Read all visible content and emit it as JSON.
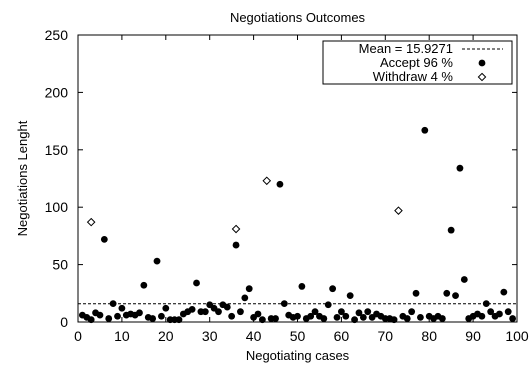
{
  "chart_data": {
    "type": "scatter",
    "title": "Negotiations Outcomes",
    "xlabel": "Negotiating cases",
    "ylabel": "Negotiations Lenght",
    "xlim": [
      0,
      100
    ],
    "ylim": [
      0,
      250
    ],
    "xticks": [
      0,
      10,
      20,
      30,
      40,
      50,
      60,
      70,
      80,
      90,
      100
    ],
    "yticks": [
      0,
      50,
      100,
      150,
      200,
      250
    ],
    "grid": false,
    "legend_position": "top-right",
    "mean_line": {
      "label": "Mean = 15.9271",
      "value": 15.9271
    },
    "series": [
      {
        "name": "Accept 96 %",
        "marker": "filled-circle",
        "color": "#000000",
        "x": [
          1,
          2,
          3,
          4,
          5,
          6,
          7,
          8,
          9,
          10,
          11,
          12,
          13,
          14,
          15,
          16,
          17,
          18,
          19,
          20,
          21,
          22,
          23,
          24,
          25,
          26,
          27,
          28,
          29,
          30,
          31,
          32,
          33,
          34,
          35,
          36,
          37,
          38,
          39,
          40,
          41,
          42,
          44,
          45,
          46,
          47,
          48,
          49,
          50,
          51,
          52,
          53,
          54,
          55,
          56,
          57,
          58,
          59,
          60,
          61,
          62,
          63,
          64,
          65,
          66,
          67,
          68,
          69,
          70,
          71,
          72,
          74,
          75,
          76,
          77,
          78,
          79,
          80,
          81,
          82,
          83,
          84,
          85,
          86,
          87,
          88,
          89,
          90,
          91,
          92,
          93,
          94,
          95,
          96,
          97,
          98,
          99
        ],
        "y": [
          6,
          4,
          2,
          8,
          6,
          72,
          3,
          16,
          5,
          12,
          6,
          7,
          6,
          8,
          32,
          4,
          3,
          53,
          5,
          12,
          2,
          2,
          2,
          7,
          9,
          11,
          34,
          9,
          9,
          15,
          12,
          9,
          15,
          13,
          5,
          67,
          9,
          21,
          29,
          4,
          7,
          2,
          3,
          3,
          120,
          16,
          6,
          4,
          5,
          31,
          3,
          5,
          9,
          5,
          3,
          15,
          29,
          4,
          9,
          5,
          23,
          2,
          8,
          4,
          9,
          4,
          7,
          5,
          3,
          3,
          2,
          5,
          3,
          9,
          25,
          4,
          167,
          5,
          3,
          5,
          3,
          25,
          80,
          23,
          134,
          37,
          3,
          5,
          7,
          5,
          16,
          9,
          5,
          7,
          26,
          9,
          3
        ]
      },
      {
        "name": "Withdraw 4 %",
        "marker": "open-diamond",
        "color": "#000000",
        "x": [
          3,
          36,
          43,
          73
        ],
        "y": [
          87,
          81,
          123,
          97
        ]
      }
    ]
  }
}
